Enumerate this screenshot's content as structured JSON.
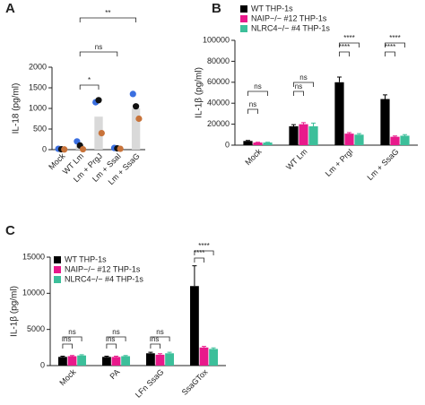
{
  "chart_data": [
    {
      "type": "bar-dots",
      "panel": "A",
      "ylabel": "IL-18 (pg/ml)",
      "categories": [
        "Mock",
        "WT Lm",
        "Lm + PrgJ",
        "Lm + SsaI",
        "Lm + SsaG"
      ],
      "values": [
        10,
        80,
        800,
        30,
        1000
      ],
      "color": "#d9d9d9",
      "series": [
        {
          "color": "#3b6fe0",
          "values": [
            20,
            200,
            1150,
            40,
            1350
          ]
        },
        {
          "color": "#111111",
          "values": [
            10,
            100,
            1200,
            30,
            1050
          ]
        },
        {
          "color": "#c8733a",
          "values": [
            5,
            10,
            400,
            20,
            750
          ]
        }
      ],
      "ylim": [
        0,
        2000
      ],
      "yticks": [
        0,
        500,
        1000,
        1500,
        2000
      ],
      "annotations": [
        "*",
        "ns",
        "**"
      ]
    },
    {
      "type": "grouped-bar",
      "panel": "B",
      "ylabel": "IL-1β (pg/ml)",
      "categories": [
        "Mock",
        "WT Lm",
        "Lm + PrgI",
        "Lm + SsaG"
      ],
      "series": [
        {
          "name": "WT THP-1s",
          "color": "#000000",
          "values": [
            4000,
            18000,
            60000,
            44000
          ],
          "errors": [
            500,
            1500,
            5000,
            4000
          ]
        },
        {
          "name": "NAIP−/− #12 THP-1s",
          "color": "#e8198b",
          "values": [
            2500,
            20000,
            11000,
            8000
          ],
          "errors": [
            300,
            1500,
            1000,
            800
          ]
        },
        {
          "name": "NLRC4−/− #4 THP-1s",
          "color": "#3cbf9a",
          "values": [
            2500,
            18000,
            10000,
            9000
          ],
          "errors": [
            300,
            3000,
            1000,
            1000
          ]
        }
      ],
      "ylim": [
        0,
        100000
      ],
      "yticks": [
        0,
        20000,
        40000,
        60000,
        80000,
        100000
      ],
      "annotations": [
        "ns",
        "ns",
        "ns",
        "ns",
        "****",
        "****",
        "****",
        "****"
      ]
    },
    {
      "type": "grouped-bar",
      "panel": "C",
      "ylabel": "IL-1β (pg/ml)",
      "categories": [
        "Mock",
        "PA",
        "LFn SsaG",
        "SsaGTox"
      ],
      "series": [
        {
          "name": "WT THP-1s",
          "color": "#000000",
          "values": [
            1200,
            1200,
            1700,
            11000
          ],
          "errors": [
            100,
            100,
            150,
            2800
          ]
        },
        {
          "name": "NAIP−/− #12 THP-1s",
          "color": "#e8198b",
          "values": [
            1300,
            1200,
            1500,
            2500
          ],
          "errors": [
            100,
            100,
            150,
            150
          ]
        },
        {
          "name": "NLRC4−/− #4 THP-1s",
          "color": "#3cbf9a",
          "values": [
            1400,
            1300,
            1700,
            2300
          ],
          "errors": [
            100,
            100,
            150,
            150
          ]
        }
      ],
      "ylim": [
        0,
        15000
      ],
      "yticks": [
        0,
        5000,
        10000,
        15000
      ],
      "annotations": [
        "ns",
        "ns",
        "ns",
        "ns",
        "ns",
        "ns",
        "****",
        "****"
      ]
    }
  ]
}
